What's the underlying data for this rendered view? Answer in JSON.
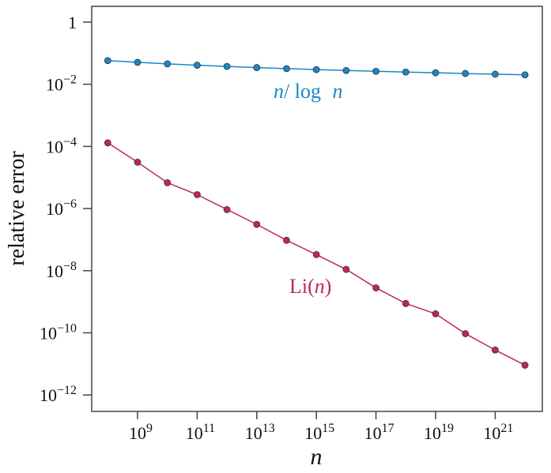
{
  "chart_data": {
    "type": "line",
    "title": "",
    "xlabel": "n",
    "ylabel": "relative error",
    "x_scale": "log",
    "y_scale": "log",
    "xlim": [
      63095734,
      3.98e+22
    ],
    "ylim_exponents": [
      -12.5,
      0.5
    ],
    "x_ticks": [
      {
        "exp": 9,
        "base": "10",
        "sup": "9"
      },
      {
        "exp": 11,
        "base": "10",
        "sup": "11"
      },
      {
        "exp": 13,
        "base": "10",
        "sup": "13"
      },
      {
        "exp": 15,
        "base": "10",
        "sup": "15"
      },
      {
        "exp": 17,
        "base": "10",
        "sup": "17"
      },
      {
        "exp": 19,
        "base": "10",
        "sup": "19"
      },
      {
        "exp": 21,
        "base": "10",
        "sup": "21"
      }
    ],
    "y_ticks": [
      {
        "exp": 0,
        "base": "1",
        "sup": ""
      },
      {
        "exp": -2,
        "base": "10",
        "sup": "−2"
      },
      {
        "exp": -4,
        "base": "10",
        "sup": "−4"
      },
      {
        "exp": -6,
        "base": "10",
        "sup": "−6"
      },
      {
        "exp": -8,
        "base": "10",
        "sup": "−8"
      },
      {
        "exp": -10,
        "base": "10",
        "sup": "−10"
      },
      {
        "exp": -12,
        "base": "10",
        "sup": "−12"
      }
    ],
    "x": [
      100000000.0,
      1000000000.0,
      10000000000.0,
      100000000000.0,
      1000000000000.0,
      10000000000000.0,
      100000000000000.0,
      1000000000000000.0,
      1e+16,
      1e+17,
      1e+18,
      1e+19,
      1e+20,
      1e+21,
      1e+22
    ],
    "series": [
      {
        "name": "n/ log n",
        "color": "#1a87c9",
        "values": [
          0.0578,
          0.0508,
          0.0453,
          0.041,
          0.0374,
          0.0344,
          0.0319,
          0.0297,
          0.0278,
          0.0262,
          0.0247,
          0.0234,
          0.0222,
          0.0211,
          0.0201
        ]
      },
      {
        "name": "Li(n)",
        "color": "#c0284f",
        "values": [
          0.00013,
          3.1e-05,
          6.8e-06,
          2.8e-06,
          9.3e-07,
          3.1e-07,
          9.5e-08,
          3.3e-08,
          1.1e-08,
          2.8e-09,
          8.8e-10,
          4.1e-10,
          9.4e-11,
          2.8e-11,
          9.1e-12
        ]
      }
    ],
    "annotations": [
      {
        "series": 0,
        "parts": [
          "n",
          "/ log ",
          "n"
        ]
      },
      {
        "series": 1,
        "parts": [
          "Li(",
          "n",
          ")"
        ]
      }
    ],
    "grid": false,
    "legend": "none (inline labels)"
  }
}
